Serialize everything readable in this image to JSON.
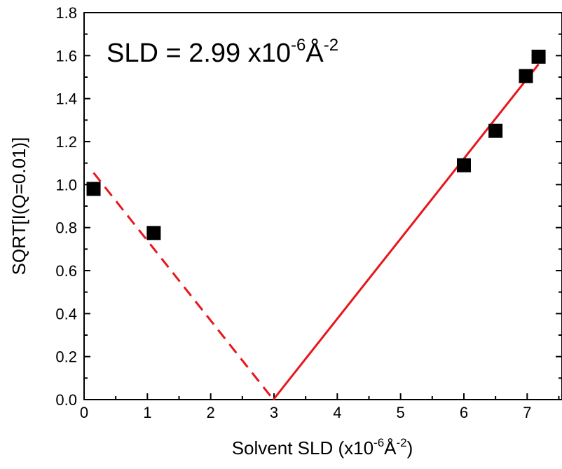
{
  "chart_data": {
    "type": "scatter",
    "xlabel": {
      "base": "Solvent SLD (x10",
      "exp1": "-6",
      "mid": "Å",
      "exp2": "-2",
      "end": ")"
    },
    "ylabel": "SQRT[I(Q=0.01)]",
    "annotation": {
      "base": "SLD = 2.99 x10",
      "exp1": "-6",
      "mid": "Å",
      "exp2": "-2"
    },
    "xlim": [
      0,
      7.55
    ],
    "ylim": [
      0,
      1.8
    ],
    "x_ticks": [
      0,
      1,
      2,
      3,
      4,
      5,
      6,
      7
    ],
    "y_ticks": [
      0.0,
      0.2,
      0.4,
      0.6,
      0.8,
      1.0,
      1.2,
      1.4,
      1.6,
      1.8
    ],
    "y_tick_labels": [
      "0.0",
      "0.2",
      "0.4",
      "0.6",
      "0.8",
      "1.0",
      "1.2",
      "1.4",
      "1.6",
      "1.8"
    ],
    "grid": false,
    "points": [
      {
        "x": 0.15,
        "y": 0.98
      },
      {
        "x": 1.1,
        "y": 0.775
      },
      {
        "x": 6.0,
        "y": 1.09
      },
      {
        "x": 6.5,
        "y": 1.25
      },
      {
        "x": 6.98,
        "y": 1.505
      },
      {
        "x": 7.18,
        "y": 1.595
      }
    ],
    "fit_lines": [
      {
        "style": "dashed",
        "color": "#e8161b",
        "from": [
          0.15,
          1.055
        ],
        "to": [
          2.99,
          0.0
        ]
      },
      {
        "style": "solid",
        "color": "#e8161b",
        "from": [
          2.99,
          0.0
        ],
        "to": [
          7.18,
          1.56
        ]
      }
    ],
    "marker_color": "#000000"
  }
}
